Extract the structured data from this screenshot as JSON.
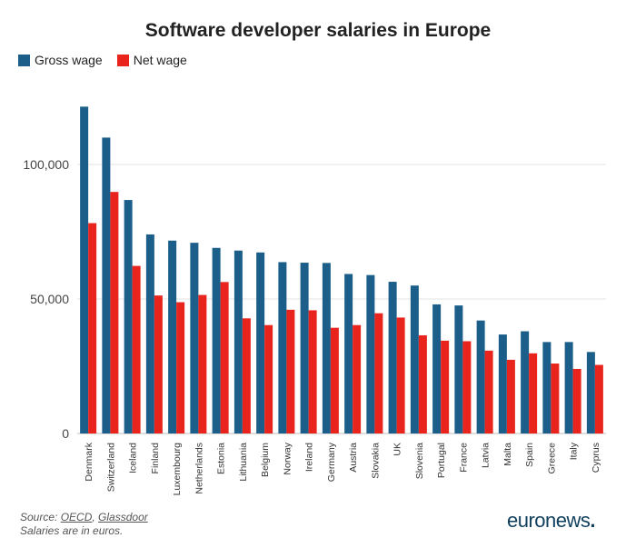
{
  "chart_data": {
    "type": "bar",
    "title": "Software developer salaries in Europe",
    "xlabel": "",
    "ylabel": "",
    "ylim": [
      0,
      125000
    ],
    "yticks": [
      0,
      50000,
      100000
    ],
    "ytick_labels": [
      "0",
      "50,000",
      "100,000"
    ],
    "grid": true,
    "legend_position": "top-left",
    "categories": [
      "Denmark",
      "Switzerland",
      "Iceland",
      "Finland",
      "Luxembourg",
      "Netherlands",
      "Estonia",
      "Lithuania",
      "Belgium",
      "Norway",
      "Ireland",
      "Germany",
      "Austria",
      "Slovakia",
      "UK",
      "Slovenia",
      "Portugal",
      "France",
      "Latvia",
      "Malta",
      "Spain",
      "Greece",
      "Italy",
      "Cyprus"
    ],
    "series": [
      {
        "name": "Gross wage",
        "color": "#1b5e8a",
        "values": [
          121500,
          110000,
          86800,
          74000,
          71700,
          70900,
          69000,
          68000,
          67300,
          63700,
          63500,
          63400,
          59300,
          58900,
          56400,
          55000,
          48000,
          47600,
          42000,
          36800,
          38000,
          34000,
          34000,
          30300
        ]
      },
      {
        "name": "Net wage",
        "color": "#e8241d",
        "values": [
          78200,
          89800,
          62300,
          51300,
          48800,
          51500,
          56300,
          42800,
          40300,
          46000,
          45800,
          39300,
          40300,
          44700,
          43100,
          36500,
          34500,
          34300,
          30800,
          27400,
          29800,
          26000,
          24000,
          25500
        ]
      }
    ]
  },
  "footer": {
    "source_prefix": "Source: ",
    "source_oecd": "OECD",
    "source_sep": ", ",
    "source_glassdoor": "Glassdoor",
    "note": "Salaries are in euros."
  },
  "brand": {
    "name": "euronews",
    "dot": "."
  }
}
